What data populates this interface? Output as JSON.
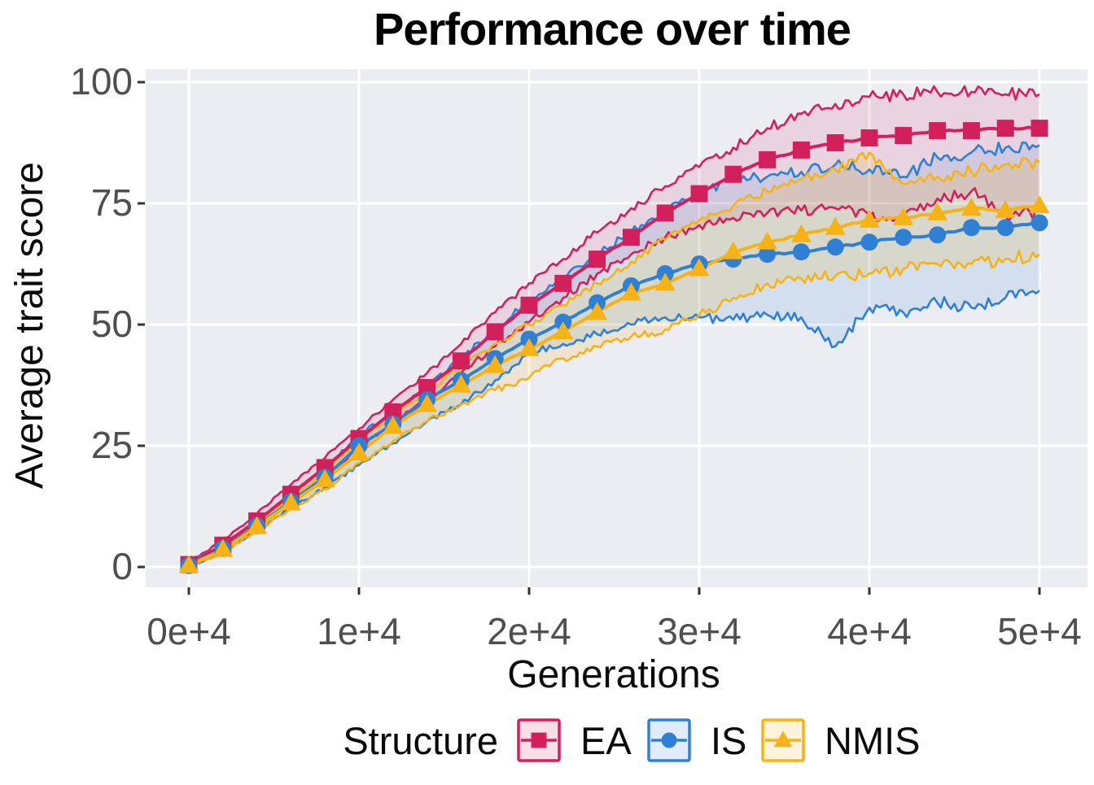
{
  "chart_data": {
    "type": "line",
    "title": "Performance over time",
    "xlabel": "Generations",
    "ylabel": "Average trait score",
    "legend_title": "Structure",
    "legend_position": "bottom",
    "grid": "major-white-on-gray",
    "xlim": [
      0,
      50000
    ],
    "ylim": [
      0,
      100
    ],
    "x_tick_values": [
      0,
      10000,
      20000,
      30000,
      40000,
      50000
    ],
    "x_tick_labels": [
      "0e+4",
      "1e+4",
      "2e+4",
      "3e+4",
      "4e+4",
      "5e+4"
    ],
    "y_tick_values": [
      0,
      25,
      50,
      75,
      100
    ],
    "y_tick_labels": [
      "0",
      "25",
      "50",
      "75",
      "100"
    ],
    "x": [
      0,
      2000,
      4000,
      6000,
      8000,
      10000,
      12000,
      14000,
      16000,
      18000,
      20000,
      22000,
      24000,
      26000,
      28000,
      30000,
      32000,
      34000,
      36000,
      38000,
      40000,
      42000,
      44000,
      46000,
      48000,
      50000
    ],
    "series": [
      {
        "name": "EA",
        "marker": "square",
        "color": "#D2205C",
        "band_alpha": 0.12,
        "mean": [
          0.5,
          4.5,
          9.5,
          15,
          20.5,
          26.5,
          32,
          37,
          42.5,
          48.5,
          54,
          58.5,
          63.5,
          68,
          73,
          77,
          81,
          84,
          86,
          87.5,
          88.5,
          89,
          90,
          90,
          90.5,
          90.5
        ],
        "lower": [
          0,
          3.5,
          8,
          13,
          18.5,
          24.5,
          29.5,
          34.5,
          40,
          45.5,
          50.5,
          55.5,
          60.5,
          64.5,
          68,
          70.5,
          72,
          73,
          73.5,
          74,
          72.5,
          72,
          76,
          77.5,
          72.5,
          73.5
        ],
        "upper": [
          1,
          5.5,
          11,
          17,
          22.5,
          28.5,
          34.5,
          40,
          46,
          52.5,
          58.5,
          63.5,
          69,
          74,
          78.5,
          82.5,
          86.5,
          90.5,
          93.5,
          95.5,
          97,
          97.5,
          98,
          98,
          97.5,
          97.5
        ]
      },
      {
        "name": "IS",
        "marker": "circle",
        "color": "#2F80D4",
        "band_alpha": 0.13,
        "mean": [
          0.3,
          3.8,
          8.5,
          13.5,
          18.5,
          25,
          29.5,
          34.5,
          38.5,
          43,
          47,
          50.5,
          54.5,
          58,
          60.5,
          62.5,
          63.5,
          64.5,
          65,
          66,
          67,
          68,
          68.5,
          70,
          70,
          71
        ],
        "lower": [
          0,
          3,
          7.5,
          12,
          16.5,
          21,
          25.5,
          30,
          33.5,
          38.5,
          44,
          46,
          48,
          50,
          51.5,
          51.5,
          51,
          52,
          51.5,
          45.5,
          53.5,
          52.5,
          54.5,
          53.5,
          55.5,
          57
        ],
        "upper": [
          0.8,
          4.5,
          9.5,
          15,
          20.5,
          27,
          32,
          37,
          43,
          49,
          55,
          59.5,
          64.5,
          69,
          73.5,
          77,
          80,
          80.5,
          81.5,
          83,
          82,
          80.5,
          84.5,
          85.5,
          86.5,
          87
        ]
      },
      {
        "name": "NMIS",
        "marker": "triangle",
        "color": "#F5B317",
        "band_alpha": 0.16,
        "mean": [
          0.3,
          3.6,
          8.3,
          13.2,
          18,
          23.5,
          29,
          33.5,
          37.5,
          41.5,
          45,
          48.5,
          52.5,
          56.5,
          58.5,
          61.5,
          65,
          67,
          68.5,
          70,
          71.5,
          72,
          73,
          74,
          73.5,
          74.5
        ],
        "lower": [
          0,
          3,
          7.5,
          12,
          16,
          21.5,
          26,
          30,
          33.5,
          36.5,
          39,
          43,
          45.5,
          47.5,
          49,
          52,
          55.5,
          58.5,
          59.5,
          60,
          60.5,
          61.5,
          62.5,
          62.5,
          63.5,
          64.5
        ],
        "upper": [
          0.8,
          4.3,
          9.2,
          14.5,
          19.5,
          26,
          31.5,
          36.5,
          41,
          46,
          50,
          54,
          58.5,
          63,
          67.5,
          71.5,
          74.5,
          77.5,
          80,
          82,
          85.5,
          79,
          80.5,
          81.5,
          83,
          83.5
        ]
      }
    ],
    "colors": {
      "panel_background": "#ECECF3",
      "gridline": "#FFFFFF",
      "tick_mark": "#333333",
      "tick_label": "#4F4F4F",
      "axis_title": "#0A0A0A",
      "title": "#000000"
    }
  }
}
